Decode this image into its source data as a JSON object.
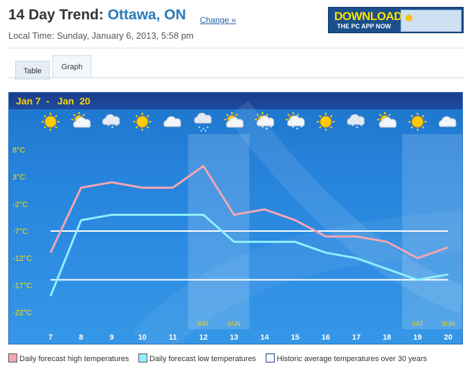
{
  "header": {
    "title_prefix": "14 Day Trend:",
    "city": "Ottawa, ON",
    "change_link": "Change »",
    "local_time": "Local Time: Sunday, January 6, 2013, 5:58 pm"
  },
  "ad": {
    "headline": "DOWNLOAD",
    "sub": "THE PC APP NOW"
  },
  "tabs": [
    {
      "label": "Table"
    },
    {
      "label": "Graph"
    }
  ],
  "chart_data": {
    "type": "line",
    "range_label": "Jan 7  -   Jan  20",
    "categories": [
      "7",
      "8",
      "9",
      "10",
      "11",
      "12",
      "13",
      "14",
      "15",
      "16",
      "17",
      "18",
      "19",
      "20"
    ],
    "weekend_labels": {
      "12": "SAT",
      "13": "SUN",
      "19": "SAT",
      "20": "SUN"
    },
    "icons": [
      "sunny",
      "sun-cloud",
      "snow-cloud",
      "sunny",
      "cloudy",
      "rain-cloud",
      "sun-cloud",
      "sun-snow",
      "sun-snow",
      "sunny",
      "snow-cloud",
      "sun-cloud",
      "sunny",
      "cloudy"
    ],
    "y_ticks": [
      "8°C",
      "3°C",
      "-2°C",
      "-7°C",
      "-12°C",
      "-17°C",
      "-22°C"
    ],
    "y_tick_values": [
      8,
      3,
      -2,
      -7,
      -12,
      -17,
      -22
    ],
    "ylim": [
      -24,
      10
    ],
    "series": [
      {
        "name": "Daily forecast high temperatures",
        "color": "#f4a6b2",
        "values": [
          -11,
          1,
          2,
          1,
          1,
          5,
          -4,
          -3,
          -5,
          -8,
          -8,
          -9,
          -12,
          -10
        ]
      },
      {
        "name": "Daily forecast low temperatures",
        "color": "#8ff0ff",
        "values": [
          -19,
          -5,
          -4,
          -4,
          -4,
          -4,
          -9,
          -9,
          -9,
          -11,
          -12,
          -14,
          -16,
          -15
        ]
      }
    ],
    "historic_average": {
      "name": "Historic average temperatures over 30 years",
      "color": "#ffffff",
      "high": -7,
      "low": -16
    },
    "grid": false,
    "legend_position": "bottom"
  }
}
